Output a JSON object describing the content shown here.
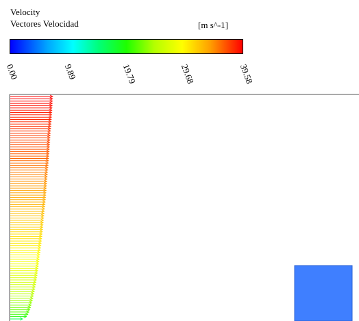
{
  "legend": {
    "title": "Velocity",
    "variable": "Vectores Velocidad",
    "units": "[m s^-1]",
    "ticks": [
      "0.00",
      "9.89",
      "19.79",
      "29.68",
      "39.58"
    ],
    "range": [
      0,
      39.58
    ],
    "colormap": [
      "#0000ff",
      "#00a6ff",
      "#00ffff",
      "#00ff7a",
      "#1eff00",
      "#b4ff00",
      "#ffff00",
      "#ffa000",
      "#ff0000"
    ]
  },
  "domain": {
    "obstacle_color": "#3f7fff",
    "boundary_color": "#555555"
  }
}
